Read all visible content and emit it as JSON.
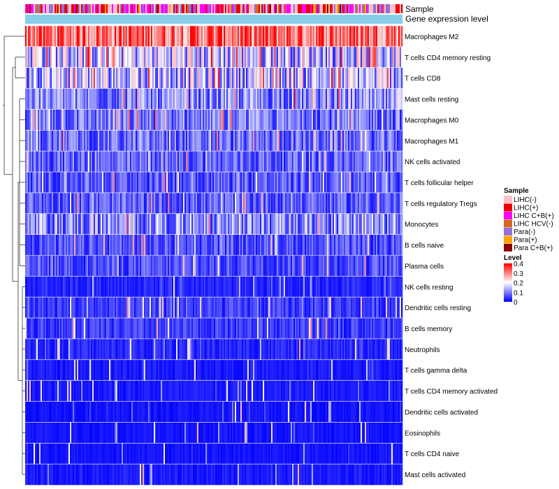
{
  "chart_data": {
    "type": "heatmap",
    "title": "",
    "annotation_tracks": [
      "Sample",
      "Gene expression level"
    ],
    "rows": [
      "Macrophages M2",
      "T cells CD4 memory resting",
      "T cells CD8",
      "Mast cells resting",
      "Macrophages M0",
      "Macrophages M1",
      "NK cells activated",
      "T cells follicular helper",
      "T cells regulatory  Tregs",
      "Monocytes",
      "B cells naive",
      "Plasma cells",
      "NK cells resting",
      "Dendritic cells resting",
      "B cells memory",
      "Neutrophils",
      "T cells gamma delta",
      "T cells CD4 memory activated",
      "Dendritic cells activated",
      "Eosinophils",
      "T cells CD4 naive",
      "Mast cells activated"
    ],
    "row_mean_level": [
      0.32,
      0.16,
      0.15,
      0.1,
      0.09,
      0.08,
      0.075,
      0.07,
      0.07,
      0.1,
      0.06,
      0.06,
      0.03,
      0.045,
      0.045,
      0.03,
      0.02,
      0.02,
      0.015,
      0.015,
      0.015,
      0.02
    ],
    "legend": {
      "sample_title": "Sample",
      "sample_entries": [
        {
          "label": "LIHC(-)",
          "color": "#ffc0cb"
        },
        {
          "label": "LIHC(+)",
          "color": "#ee0000"
        },
        {
          "label": "LIHC C+B(+)",
          "color": "#ff00ff"
        },
        {
          "label": "LIHC HCV(-)",
          "color": "#d2691e"
        },
        {
          "label": "Para(-)",
          "color": "#9370db"
        },
        {
          "label": "Para(+)",
          "color": "#ffa500"
        },
        {
          "label": "Para C+B(+)",
          "color": "#8b0000"
        }
      ],
      "level_title": "Level",
      "level_ticks": [
        "0.4",
        "0.3",
        "0.2",
        "0.1",
        "0"
      ],
      "level_colors": [
        "#0000ff",
        "#ffffff",
        "#ff0000"
      ],
      "level_range": [
        0,
        0.4
      ]
    },
    "gene_expression_color": "#87ceeb"
  }
}
